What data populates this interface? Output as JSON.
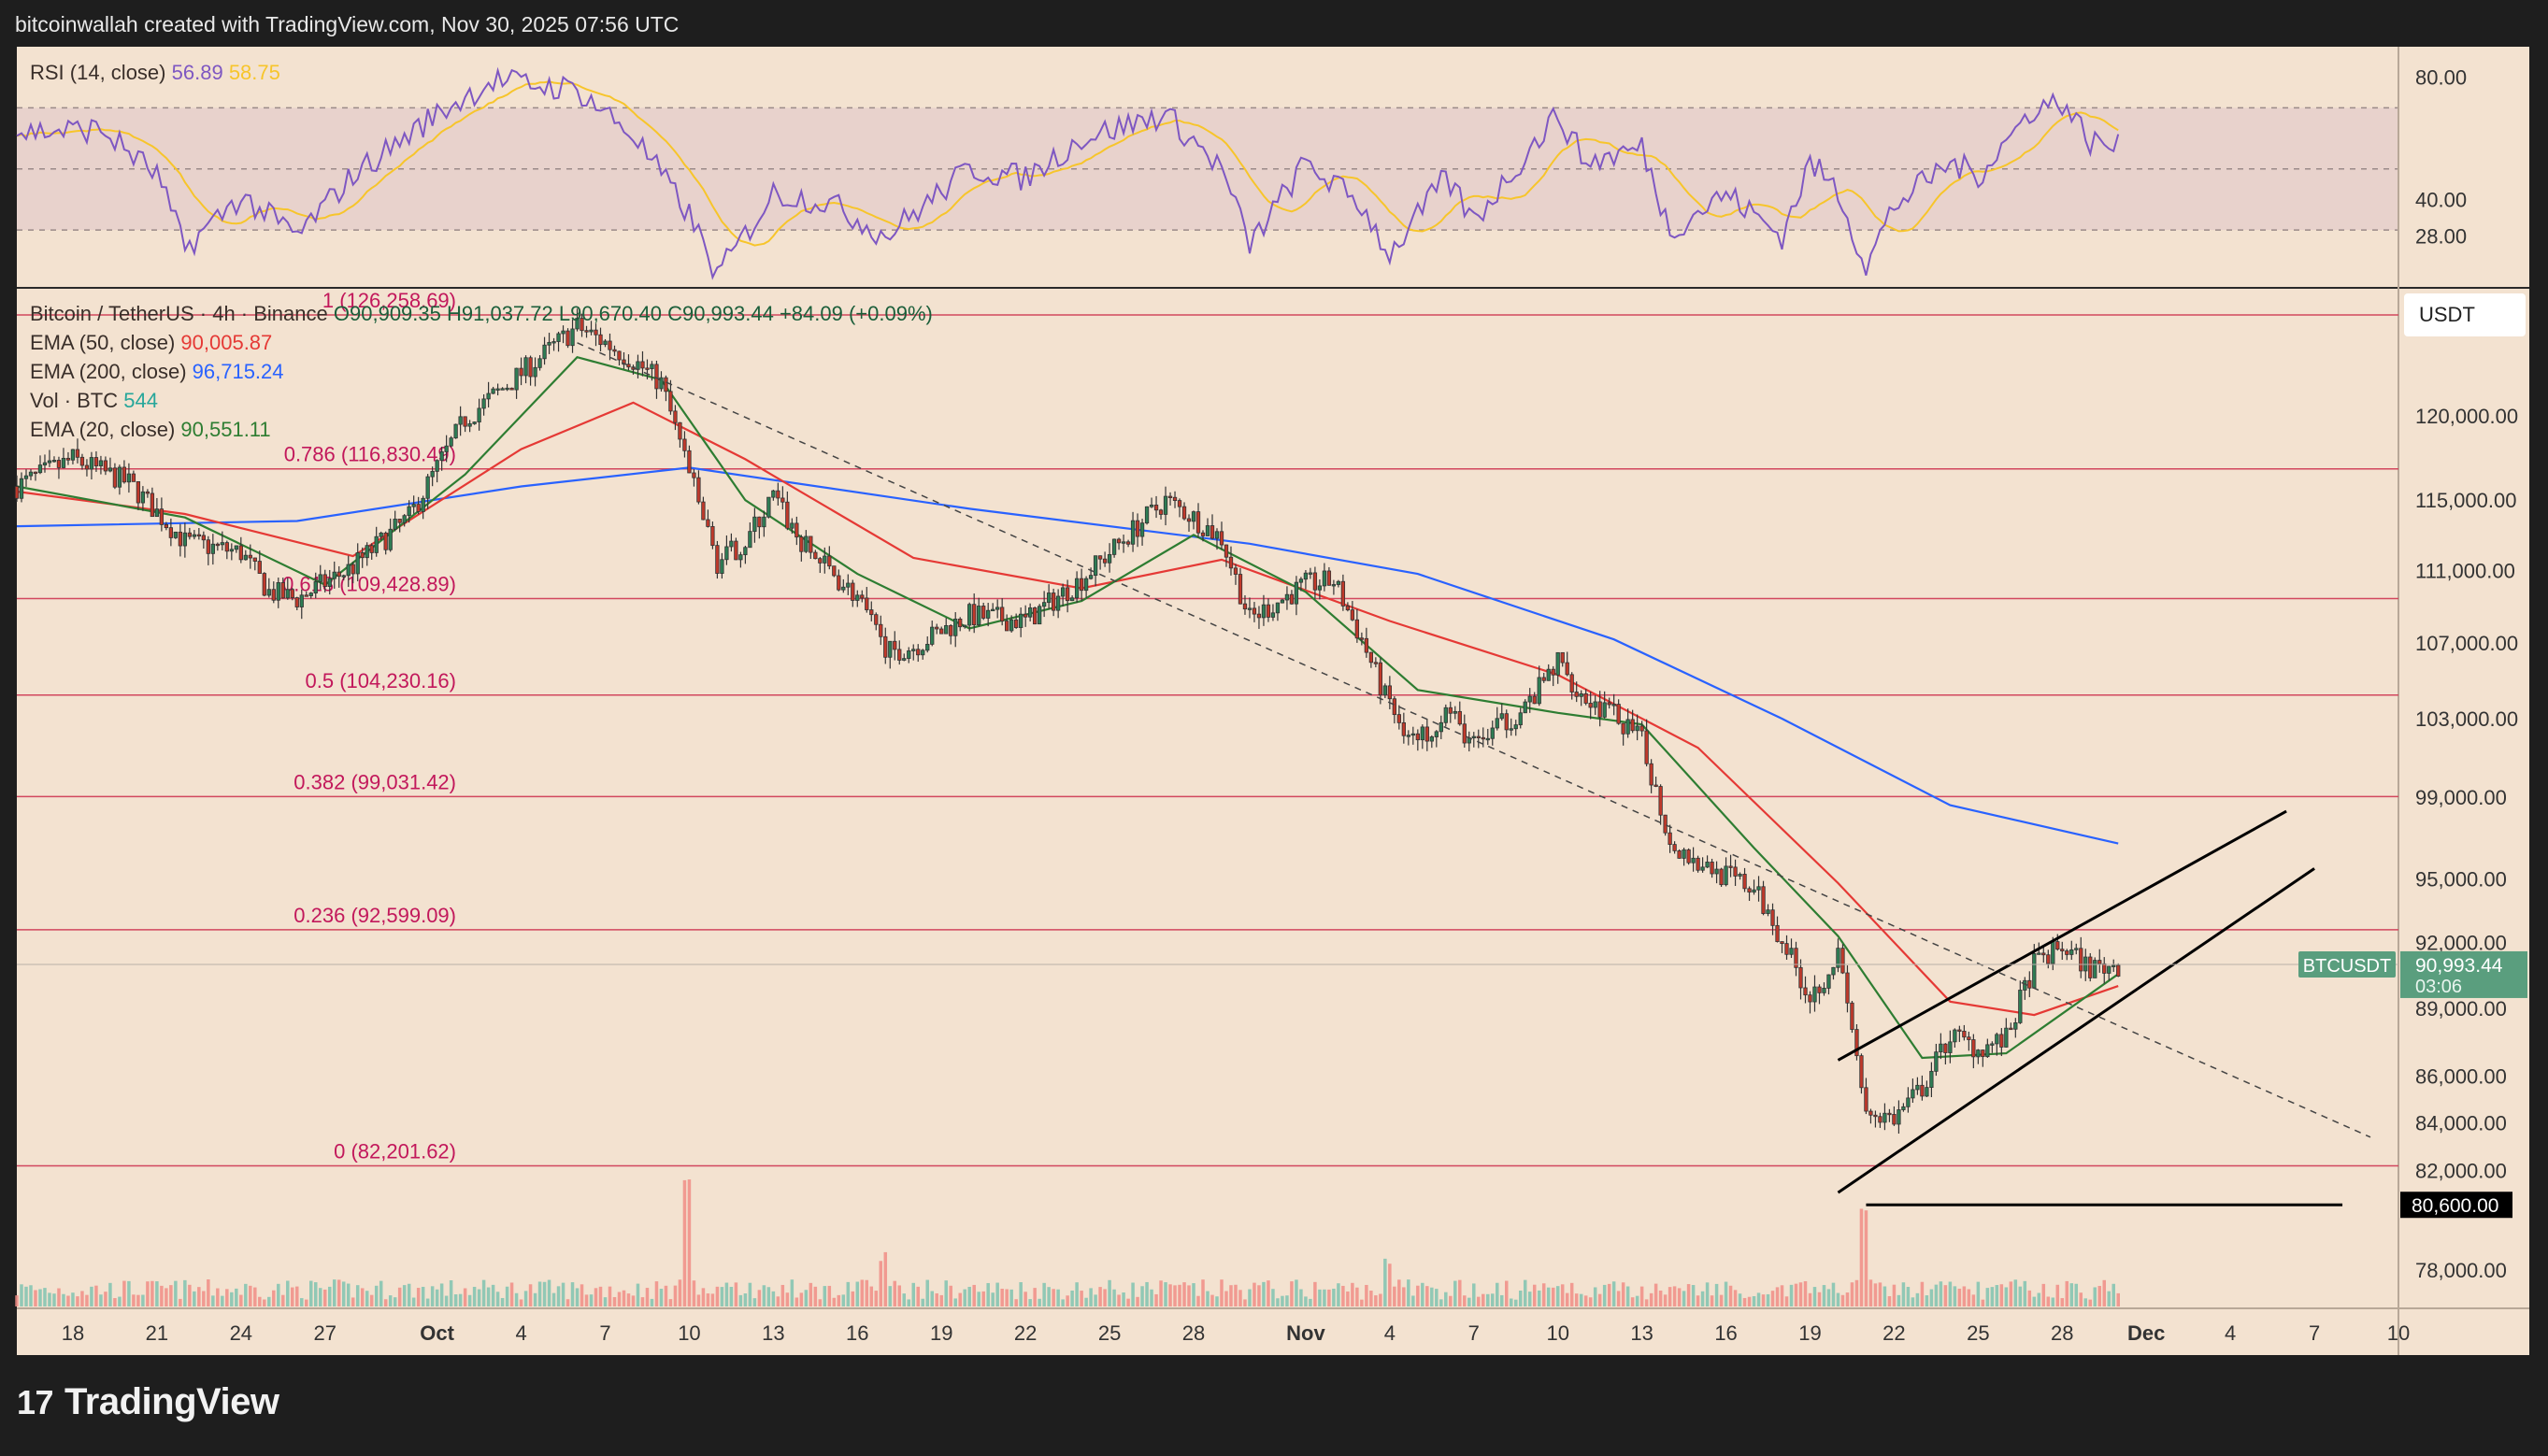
{
  "attribution": "bitcoinwallah created with TradingView.com, Nov 30, 2025 07:56 UTC",
  "brand": {
    "logo_text": "17",
    "name": "TradingView"
  },
  "rsi_pane": {
    "label": "RSI (14, close)",
    "value": "56.89",
    "ma_value": "58.75",
    "value_color": "#7e57c2",
    "ma_color": "#f7c52b",
    "axis_ticks": [
      "80.00",
      "40.00",
      "28.00"
    ]
  },
  "legend": {
    "symbol": "Bitcoin / TetherUS · 4h · Binance",
    "ohlc": "O90,909.35  H91,037.72  L90,670.40  C90,993.44  +84.09 (+0.09%)",
    "ema50_label": "EMA (50, close)",
    "ema50_value": "90,005.87",
    "ema50_color": "#e53935",
    "ema200_label": "EMA (200, close)",
    "ema200_value": "96,715.24",
    "ema200_color": "#2962ff",
    "vol_label": "Vol · BTC",
    "vol_value": "544",
    "ema20_label": "EMA (20, close)",
    "ema20_value": "90,551.11",
    "ema20_color": "#2e7d32"
  },
  "currency_button": "USDT",
  "price_axis": [
    "120,000.00",
    "115,000.00",
    "111,000.00",
    "107,000.00",
    "103,000.00",
    "99,000.00",
    "95,000.00",
    "92,000.00",
    "89,000.00",
    "86,000.00",
    "84,000.00",
    "82,000.00",
    "78,000.00"
  ],
  "time_axis": [
    "18",
    "21",
    "24",
    "27",
    "Oct",
    "4",
    "7",
    "10",
    "13",
    "16",
    "19",
    "22",
    "25",
    "28",
    "Nov",
    "4",
    "7",
    "10",
    "13",
    "16",
    "19",
    "22",
    "25",
    "28",
    "Dec",
    "4",
    "7",
    "10"
  ],
  "price_tag": {
    "symbol": "BTCUSDT",
    "price": "90,993.44",
    "countdown": "03:06",
    "color": "#5a9e7e"
  },
  "support_tag": "80,600.00",
  "fib_levels": [
    {
      "label": "1 (126,258.69)",
      "price": 126258.69
    },
    {
      "label": "0.786 (116,830.49)",
      "price": 116830.49
    },
    {
      "label": "0.618 (109,428.89)",
      "price": 109428.89
    },
    {
      "label": "0.5 (104,230.16)",
      "price": 104230.16
    },
    {
      "label": "0.382 (99,031.42)",
      "price": 99031.42
    },
    {
      "label": "0.236 (92,599.09)",
      "price": 92599.09
    },
    {
      "label": "0 (82,201.62)",
      "price": 82201.62
    }
  ],
  "chart_data": {
    "type": "candlestick",
    "title": "Bitcoin / TetherUS · 4h · Binance",
    "interval": "4h",
    "x_range": [
      "2025-09-16",
      "2025-12-10"
    ],
    "y_scale": "log",
    "y_range": [
      76500,
      128000
    ],
    "rsi_range": [
      12,
      90
    ],
    "rsi_band": [
      30,
      70
    ],
    "price_path": [
      {
        "date": "2025-09-16",
        "close": 115800
      },
      {
        "date": "2025-09-18",
        "close": 117400
      },
      {
        "date": "2025-09-20",
        "close": 116000
      },
      {
        "date": "2025-09-22",
        "close": 112600
      },
      {
        "date": "2025-09-24",
        "close": 112000
      },
      {
        "date": "2025-09-25",
        "close": 109800
      },
      {
        "date": "2025-09-26",
        "close": 109400
      },
      {
        "date": "2025-09-28",
        "close": 111200
      },
      {
        "date": "2025-09-30",
        "close": 114000
      },
      {
        "date": "2025-10-02",
        "close": 119800
      },
      {
        "date": "2025-10-04",
        "close": 122600
      },
      {
        "date": "2025-10-06",
        "close": 125500
      },
      {
        "date": "2025-10-07",
        "close": 124500
      },
      {
        "date": "2025-10-08",
        "close": 123400
      },
      {
        "date": "2025-10-09",
        "close": 122000
      },
      {
        "date": "2025-10-10",
        "close": 116500
      },
      {
        "date": "2025-10-11",
        "close": 111400
      },
      {
        "date": "2025-10-12",
        "close": 112600
      },
      {
        "date": "2025-10-13",
        "close": 115200
      },
      {
        "date": "2025-10-14",
        "close": 112500
      },
      {
        "date": "2025-10-16",
        "close": 109500
      },
      {
        "date": "2025-10-17",
        "close": 106500
      },
      {
        "date": "2025-10-18",
        "close": 106800
      },
      {
        "date": "2025-10-20",
        "close": 108500
      },
      {
        "date": "2025-10-22",
        "close": 108200
      },
      {
        "date": "2025-10-24",
        "close": 110500
      },
      {
        "date": "2025-10-26",
        "close": 113500
      },
      {
        "date": "2025-10-27",
        "close": 115000
      },
      {
        "date": "2025-10-28",
        "close": 114000
      },
      {
        "date": "2025-10-29",
        "close": 112800
      },
      {
        "date": "2025-10-30",
        "close": 108300
      },
      {
        "date": "2025-11-01",
        "close": 110200
      },
      {
        "date": "2025-11-02",
        "close": 110400
      },
      {
        "date": "2025-11-03",
        "close": 107200
      },
      {
        "date": "2025-11-04",
        "close": 103500
      },
      {
        "date": "2025-11-05",
        "close": 101800
      },
      {
        "date": "2025-11-06",
        "close": 103500
      },
      {
        "date": "2025-11-07",
        "close": 101600
      },
      {
        "date": "2025-11-09",
        "close": 103800
      },
      {
        "date": "2025-11-10",
        "close": 106000
      },
      {
        "date": "2025-11-11",
        "close": 104000
      },
      {
        "date": "2025-11-12",
        "close": 103200
      },
      {
        "date": "2025-11-13",
        "close": 101800
      },
      {
        "date": "2025-11-14",
        "close": 96800
      },
      {
        "date": "2025-11-15",
        "close": 95800
      },
      {
        "date": "2025-11-17",
        "close": 94500
      },
      {
        "date": "2025-11-18",
        "close": 92200
      },
      {
        "date": "2025-11-19",
        "close": 89500
      },
      {
        "date": "2025-11-20",
        "close": 91400
      },
      {
        "date": "2025-11-21",
        "close": 84500
      },
      {
        "date": "2025-11-22",
        "close": 84200
      },
      {
        "date": "2025-11-23",
        "close": 85500
      },
      {
        "date": "2025-11-24",
        "close": 87800
      },
      {
        "date": "2025-11-25",
        "close": 87200
      },
      {
        "date": "2025-11-26",
        "close": 87600
      },
      {
        "date": "2025-11-27",
        "close": 91000
      },
      {
        "date": "2025-11-28",
        "close": 91800
      },
      {
        "date": "2025-11-29",
        "close": 90800
      },
      {
        "date": "2025-11-30",
        "close": 90993
      }
    ],
    "ema20": [
      {
        "date": "2025-09-16",
        "v": 115800
      },
      {
        "date": "2025-09-22",
        "v": 114000
      },
      {
        "date": "2025-09-27",
        "v": 110200
      },
      {
        "date": "2025-10-02",
        "v": 116500
      },
      {
        "date": "2025-10-06",
        "v": 123600
      },
      {
        "date": "2025-10-09",
        "v": 122200
      },
      {
        "date": "2025-10-12",
        "v": 115000
      },
      {
        "date": "2025-10-16",
        "v": 110800
      },
      {
        "date": "2025-10-20",
        "v": 107800
      },
      {
        "date": "2025-10-24",
        "v": 109300
      },
      {
        "date": "2025-10-28",
        "v": 113000
      },
      {
        "date": "2025-11-01",
        "v": 109800
      },
      {
        "date": "2025-11-05",
        "v": 104500
      },
      {
        "date": "2025-11-10",
        "v": 103300
      },
      {
        "date": "2025-11-13",
        "v": 102700
      },
      {
        "date": "2025-11-17",
        "v": 96500
      },
      {
        "date": "2025-11-20",
        "v": 92300
      },
      {
        "date": "2025-11-23",
        "v": 86800
      },
      {
        "date": "2025-11-26",
        "v": 87000
      },
      {
        "date": "2025-11-30",
        "v": 90551
      }
    ],
    "ema50": [
      {
        "date": "2025-09-16",
        "v": 115500
      },
      {
        "date": "2025-09-22",
        "v": 114200
      },
      {
        "date": "2025-09-28",
        "v": 111800
      },
      {
        "date": "2025-10-04",
        "v": 118000
      },
      {
        "date": "2025-10-08",
        "v": 120800
      },
      {
        "date": "2025-10-12",
        "v": 117400
      },
      {
        "date": "2025-10-18",
        "v": 111700
      },
      {
        "date": "2025-10-24",
        "v": 110000
      },
      {
        "date": "2025-10-29",
        "v": 111600
      },
      {
        "date": "2025-11-04",
        "v": 108200
      },
      {
        "date": "2025-11-10",
        "v": 105300
      },
      {
        "date": "2025-11-15",
        "v": 101500
      },
      {
        "date": "2025-11-20",
        "v": 94800
      },
      {
        "date": "2025-11-24",
        "v": 89300
      },
      {
        "date": "2025-11-27",
        "v": 88700
      },
      {
        "date": "2025-11-30",
        "v": 90006
      }
    ],
    "ema200": [
      {
        "date": "2025-09-16",
        "v": 113500
      },
      {
        "date": "2025-09-26",
        "v": 113800
      },
      {
        "date": "2025-10-04",
        "v": 115800
      },
      {
        "date": "2025-10-10",
        "v": 116900
      },
      {
        "date": "2025-10-20",
        "v": 114500
      },
      {
        "date": "2025-10-30",
        "v": 112500
      },
      {
        "date": "2025-11-05",
        "v": 110800
      },
      {
        "date": "2025-11-12",
        "v": 107200
      },
      {
        "date": "2025-11-18",
        "v": 103000
      },
      {
        "date": "2025-11-24",
        "v": 98600
      },
      {
        "date": "2025-11-30",
        "v": 96715
      }
    ],
    "rsi": [
      {
        "date": "2025-09-16",
        "v": 62
      },
      {
        "date": "2025-09-19",
        "v": 63
      },
      {
        "date": "2025-09-21",
        "v": 48
      },
      {
        "date": "2025-09-22",
        "v": 24
      },
      {
        "date": "2025-09-24",
        "v": 41
      },
      {
        "date": "2025-09-26",
        "v": 28
      },
      {
        "date": "2025-09-28",
        "v": 48
      },
      {
        "date": "2025-10-01",
        "v": 68
      },
      {
        "date": "2025-10-03",
        "v": 79
      },
      {
        "date": "2025-10-06",
        "v": 76
      },
      {
        "date": "2025-10-08",
        "v": 61
      },
      {
        "date": "2025-10-10",
        "v": 35
      },
      {
        "date": "2025-10-11",
        "v": 15
      },
      {
        "date": "2025-10-13",
        "v": 42
      },
      {
        "date": "2025-10-15",
        "v": 39
      },
      {
        "date": "2025-10-17",
        "v": 28
      },
      {
        "date": "2025-10-20",
        "v": 50
      },
      {
        "date": "2025-10-22",
        "v": 47
      },
      {
        "date": "2025-10-24",
        "v": 60
      },
      {
        "date": "2025-10-27",
        "v": 68
      },
      {
        "date": "2025-10-29",
        "v": 50
      },
      {
        "date": "2025-10-30",
        "v": 25
      },
      {
        "date": "2025-11-01",
        "v": 52
      },
      {
        "date": "2025-11-03",
        "v": 38
      },
      {
        "date": "2025-11-04",
        "v": 22
      },
      {
        "date": "2025-11-06",
        "v": 47
      },
      {
        "date": "2025-11-07",
        "v": 33
      },
      {
        "date": "2025-11-10",
        "v": 68
      },
      {
        "date": "2025-11-11",
        "v": 52
      },
      {
        "date": "2025-11-13",
        "v": 57
      },
      {
        "date": "2025-11-14",
        "v": 30
      },
      {
        "date": "2025-11-16",
        "v": 42
      },
      {
        "date": "2025-11-18",
        "v": 28
      },
      {
        "date": "2025-11-19",
        "v": 52
      },
      {
        "date": "2025-11-20",
        "v": 43
      },
      {
        "date": "2025-11-21",
        "v": 18
      },
      {
        "date": "2025-11-22",
        "v": 38
      },
      {
        "date": "2025-11-24",
        "v": 52
      },
      {
        "date": "2025-11-25",
        "v": 48
      },
      {
        "date": "2025-11-27",
        "v": 70
      },
      {
        "date": "2025-11-28",
        "v": 72
      },
      {
        "date": "2025-11-29",
        "v": 59
      },
      {
        "date": "2025-11-30",
        "v": 56.89
      }
    ],
    "volume_spikes": [
      {
        "date": "2025-10-10",
        "v": 5
      },
      {
        "date": "2025-10-17",
        "v": 2.2
      },
      {
        "date": "2025-11-04",
        "v": 1.9
      },
      {
        "date": "2025-11-21",
        "v": 3.6
      }
    ],
    "volume_baseline": 0.7,
    "trendlines": [
      {
        "name": "downtrend",
        "from": {
          "date": "2025-10-06",
          "price": 124500
        },
        "to": {
          "date": "2025-12-09",
          "price": 83400
        },
        "style": "dashed"
      },
      {
        "name": "channel-upper",
        "from": {
          "date": "2025-11-20",
          "price": 86700
        },
        "to": {
          "date": "2025-12-06",
          "price": 98300
        }
      },
      {
        "name": "channel-lower",
        "from": {
          "date": "2025-11-20",
          "price": 81100
        },
        "to": {
          "date": "2025-12-07",
          "price": 95500
        }
      },
      {
        "name": "support",
        "from": {
          "date": "2025-11-21",
          "price": 80600
        },
        "to": {
          "date": "2025-12-08",
          "price": 80600
        }
      }
    ]
  }
}
